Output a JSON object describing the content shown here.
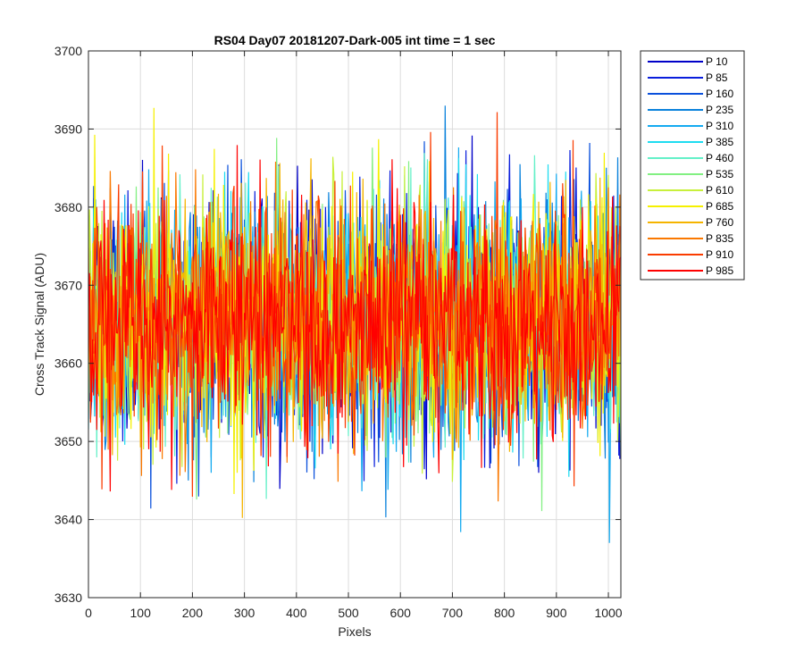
{
  "chart_data": {
    "type": "line",
    "title": "RS04 Day07 20181207-Dark-005 int time = 1 sec",
    "xlabel": "Pixels",
    "ylabel": "Cross Track Signal (ADU)",
    "xlim": [
      0,
      1024
    ],
    "ylim": [
      3630,
      3700
    ],
    "xticks": [
      0,
      100,
      200,
      300,
      400,
      500,
      600,
      700,
      800,
      900,
      1000
    ],
    "yticks": [
      3630,
      3640,
      3650,
      3660,
      3670,
      3680,
      3690,
      3700
    ],
    "grid": true,
    "legend_position": "outside-top-right",
    "series": [
      {
        "name": "P 10",
        "color": "#0000c8"
      },
      {
        "name": "P 85",
        "color": "#0a1edc"
      },
      {
        "name": "P 160",
        "color": "#0a50dc"
      },
      {
        "name": "P 235",
        "color": "#0a82dc"
      },
      {
        "name": "P 310",
        "color": "#14aaf0"
      },
      {
        "name": "P 385",
        "color": "#1edcf0"
      },
      {
        "name": "P 460",
        "color": "#64f0c8"
      },
      {
        "name": "P 535",
        "color": "#82f082"
      },
      {
        "name": "P 610",
        "color": "#c8f03c"
      },
      {
        "name": "P 685",
        "color": "#f5f000"
      },
      {
        "name": "P 760",
        "color": "#f5b400"
      },
      {
        "name": "P 835",
        "color": "#fa7800"
      },
      {
        "name": "P 910",
        "color": "#fa3c00"
      },
      {
        "name": "P 985",
        "color": "#ff0000"
      }
    ],
    "series_summary": {
      "mean": 3665.5,
      "spread": 7.5,
      "observed_min": 3637,
      "observed_max": 3693
    }
  }
}
